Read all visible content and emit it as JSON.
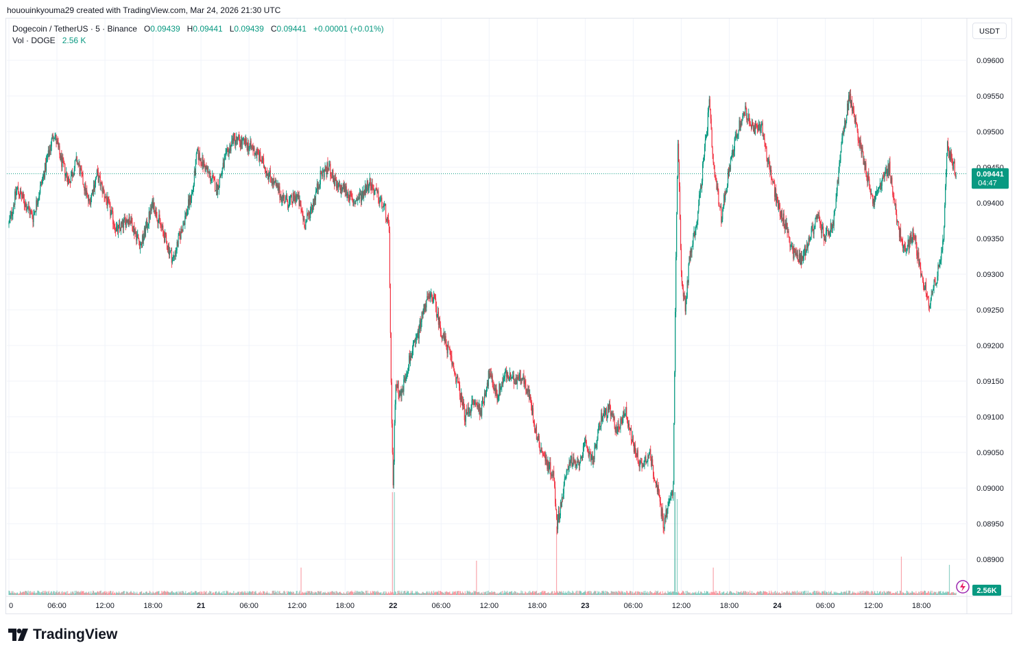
{
  "header": {
    "credit": "hououinkyouma29 created with TradingView.com, Mar 24, 2026 21:30 UTC"
  },
  "legend": {
    "symbol": "Dogecoin / TetherUS · 5 · Binance",
    "o_label": "O",
    "o": "0.09439",
    "h_label": "H",
    "h": "0.09441",
    "l_label": "L",
    "l": "0.09439",
    "c_label": "C",
    "c": "0.09441",
    "change": "+0.00001 (+0.01%)",
    "vol_label": "Vol · DOGE",
    "vol": "2.56 K"
  },
  "currency_button": "USDT",
  "price_label": {
    "price": "0.09441",
    "countdown": "04:47"
  },
  "volume_badge": "2.56K",
  "logo_text": "TradingView",
  "colors": {
    "up": "#089981",
    "down": "#f23645",
    "grid": "#f0f3fa",
    "text": "#131722",
    "axis": "#e0e3eb"
  },
  "chart_data": {
    "type": "candlestick",
    "y_ticks": [
      "0.09600",
      "0.09550",
      "0.09500",
      "0.09450",
      "0.09400",
      "0.09350",
      "0.09300",
      "0.09250",
      "0.09200",
      "0.09150",
      "0.09100",
      "0.09050",
      "0.09000",
      "0.08950",
      "0.08900"
    ],
    "ylim": [
      0.0886,
      0.0964
    ],
    "x_ticks": [
      "0",
      "06:00",
      "12:00",
      "18:00",
      "21",
      "06:00",
      "12:00",
      "18:00",
      "22",
      "06:00",
      "12:00",
      "18:00",
      "23",
      "06:00",
      "12:00",
      "18:00",
      "24",
      "06:00",
      "12:00",
      "18:00"
    ],
    "x_tick_hours": [
      0,
      6,
      12,
      18,
      24,
      30,
      36,
      42,
      48,
      54,
      60,
      66,
      72,
      78,
      84,
      90,
      96,
      102,
      108,
      114
    ],
    "bold_ticks": [
      "21",
      "22",
      "23",
      "24"
    ],
    "price_path": [
      {
        "t": 0,
        "p": 0.0937
      },
      {
        "t": 1,
        "p": 0.0942
      },
      {
        "t": 3,
        "p": 0.0938
      },
      {
        "t": 5,
        "p": 0.0947
      },
      {
        "t": 5.6,
        "p": 0.095
      },
      {
        "t": 6.5,
        "p": 0.0946
      },
      {
        "t": 7.5,
        "p": 0.0943
      },
      {
        "t": 8.5,
        "p": 0.0946
      },
      {
        "t": 10,
        "p": 0.094
      },
      {
        "t": 11,
        "p": 0.0944
      },
      {
        "t": 12,
        "p": 0.0941
      },
      {
        "t": 13.5,
        "p": 0.0936
      },
      {
        "t": 15,
        "p": 0.0938
      },
      {
        "t": 16.5,
        "p": 0.0934
      },
      {
        "t": 18,
        "p": 0.094
      },
      {
        "t": 19.5,
        "p": 0.0935
      },
      {
        "t": 20.5,
        "p": 0.0932
      },
      {
        "t": 22,
        "p": 0.0938
      },
      {
        "t": 23,
        "p": 0.0942
      },
      {
        "t": 23.5,
        "p": 0.0947
      },
      {
        "t": 25,
        "p": 0.0944
      },
      {
        "t": 26,
        "p": 0.0942
      },
      {
        "t": 27,
        "p": 0.0946
      },
      {
        "t": 28,
        "p": 0.0949
      },
      {
        "t": 30,
        "p": 0.0948
      },
      {
        "t": 31,
        "p": 0.0947
      },
      {
        "t": 32,
        "p": 0.0945
      },
      {
        "t": 33,
        "p": 0.0943
      },
      {
        "t": 34,
        "p": 0.0941
      },
      {
        "t": 35,
        "p": 0.094
      },
      {
        "t": 36,
        "p": 0.0941
      },
      {
        "t": 37,
        "p": 0.0937
      },
      {
        "t": 38,
        "p": 0.094
      },
      {
        "t": 39,
        "p": 0.0944
      },
      {
        "t": 40,
        "p": 0.0945
      },
      {
        "t": 41,
        "p": 0.0942
      },
      {
        "t": 42,
        "p": 0.0942
      },
      {
        "t": 43,
        "p": 0.094
      },
      {
        "t": 44,
        "p": 0.0941
      },
      {
        "t": 45,
        "p": 0.0943
      },
      {
        "t": 46,
        "p": 0.0941
      },
      {
        "t": 47,
        "p": 0.0939
      },
      {
        "t": 47.5,
        "p": 0.0936
      },
      {
        "t": 47.8,
        "p": 0.091
      },
      {
        "t": 48,
        "p": 0.09
      },
      {
        "t": 48.3,
        "p": 0.0915
      },
      {
        "t": 49,
        "p": 0.0913
      },
      {
        "t": 50,
        "p": 0.0918
      },
      {
        "t": 51,
        "p": 0.0921
      },
      {
        "t": 52,
        "p": 0.0926
      },
      {
        "t": 53,
        "p": 0.0927
      },
      {
        "t": 54,
        "p": 0.0922
      },
      {
        "t": 55,
        "p": 0.0919
      },
      {
        "t": 56,
        "p": 0.0915
      },
      {
        "t": 57,
        "p": 0.091
      },
      {
        "t": 58,
        "p": 0.0912
      },
      {
        "t": 59,
        "p": 0.0911
      },
      {
        "t": 60,
        "p": 0.0916
      },
      {
        "t": 61,
        "p": 0.0913
      },
      {
        "t": 62,
        "p": 0.0916
      },
      {
        "t": 63,
        "p": 0.0915
      },
      {
        "t": 64,
        "p": 0.0916
      },
      {
        "t": 65,
        "p": 0.0913
      },
      {
        "t": 66,
        "p": 0.0907
      },
      {
        "t": 67,
        "p": 0.0904
      },
      {
        "t": 68,
        "p": 0.0902
      },
      {
        "t": 68.5,
        "p": 0.0895
      },
      {
        "t": 69,
        "p": 0.0898
      },
      {
        "t": 70,
        "p": 0.0904
      },
      {
        "t": 71,
        "p": 0.0903
      },
      {
        "t": 72,
        "p": 0.0906
      },
      {
        "t": 73,
        "p": 0.0904
      },
      {
        "t": 74,
        "p": 0.091
      },
      {
        "t": 75,
        "p": 0.0911
      },
      {
        "t": 76,
        "p": 0.0908
      },
      {
        "t": 77,
        "p": 0.0911
      },
      {
        "t": 78,
        "p": 0.0906
      },
      {
        "t": 79,
        "p": 0.0903
      },
      {
        "t": 80,
        "p": 0.0905
      },
      {
        "t": 81,
        "p": 0.09
      },
      {
        "t": 81.8,
        "p": 0.0895
      },
      {
        "t": 82.5,
        "p": 0.0898
      },
      {
        "t": 83,
        "p": 0.09
      },
      {
        "t": 83.3,
        "p": 0.093
      },
      {
        "t": 83.6,
        "p": 0.095
      },
      {
        "t": 84,
        "p": 0.093
      },
      {
        "t": 84.5,
        "p": 0.0925
      },
      {
        "t": 85,
        "p": 0.0932
      },
      {
        "t": 86,
        "p": 0.0938
      },
      {
        "t": 87,
        "p": 0.0948
      },
      {
        "t": 87.5,
        "p": 0.0954
      },
      {
        "t": 88,
        "p": 0.0945
      },
      {
        "t": 89,
        "p": 0.0938
      },
      {
        "t": 90,
        "p": 0.0945
      },
      {
        "t": 91,
        "p": 0.095
      },
      {
        "t": 92,
        "p": 0.0953
      },
      {
        "t": 93,
        "p": 0.095
      },
      {
        "t": 94,
        "p": 0.0951
      },
      {
        "t": 95,
        "p": 0.0945
      },
      {
        "t": 96,
        "p": 0.094
      },
      {
        "t": 97,
        "p": 0.0937
      },
      {
        "t": 98,
        "p": 0.0933
      },
      {
        "t": 99,
        "p": 0.0932
      },
      {
        "t": 100,
        "p": 0.0935
      },
      {
        "t": 101,
        "p": 0.0938
      },
      {
        "t": 102,
        "p": 0.0935
      },
      {
        "t": 103,
        "p": 0.0937
      },
      {
        "t": 104,
        "p": 0.0948
      },
      {
        "t": 105,
        "p": 0.0955
      },
      {
        "t": 106,
        "p": 0.095
      },
      {
        "t": 107,
        "p": 0.0945
      },
      {
        "t": 108,
        "p": 0.094
      },
      {
        "t": 109,
        "p": 0.0943
      },
      {
        "t": 110,
        "p": 0.0945
      },
      {
        "t": 111,
        "p": 0.0937
      },
      {
        "t": 112,
        "p": 0.0933
      },
      {
        "t": 113,
        "p": 0.0936
      },
      {
        "t": 114,
        "p": 0.093
      },
      {
        "t": 115,
        "p": 0.0926
      },
      {
        "t": 116,
        "p": 0.093
      },
      {
        "t": 116.8,
        "p": 0.0935
      },
      {
        "t": 117.2,
        "p": 0.0948
      },
      {
        "t": 117.8,
        "p": 0.0946
      },
      {
        "t": 118.4,
        "p": 0.09441
      }
    ],
    "volume_spikes": [
      {
        "t": 47.9,
        "v": 14
      },
      {
        "t": 48.2,
        "v": 9
      },
      {
        "t": 68.4,
        "v": 5
      },
      {
        "t": 83.2,
        "v": 12
      },
      {
        "t": 83.5,
        "v": 7
      },
      {
        "t": 36.5,
        "v": 2
      },
      {
        "t": 58.4,
        "v": 2.5
      },
      {
        "t": 111.5,
        "v": 2.8
      },
      {
        "t": 117.5,
        "v": 2.2
      },
      {
        "t": 88,
        "v": 2
      }
    ],
    "last_price": 0.09441
  }
}
